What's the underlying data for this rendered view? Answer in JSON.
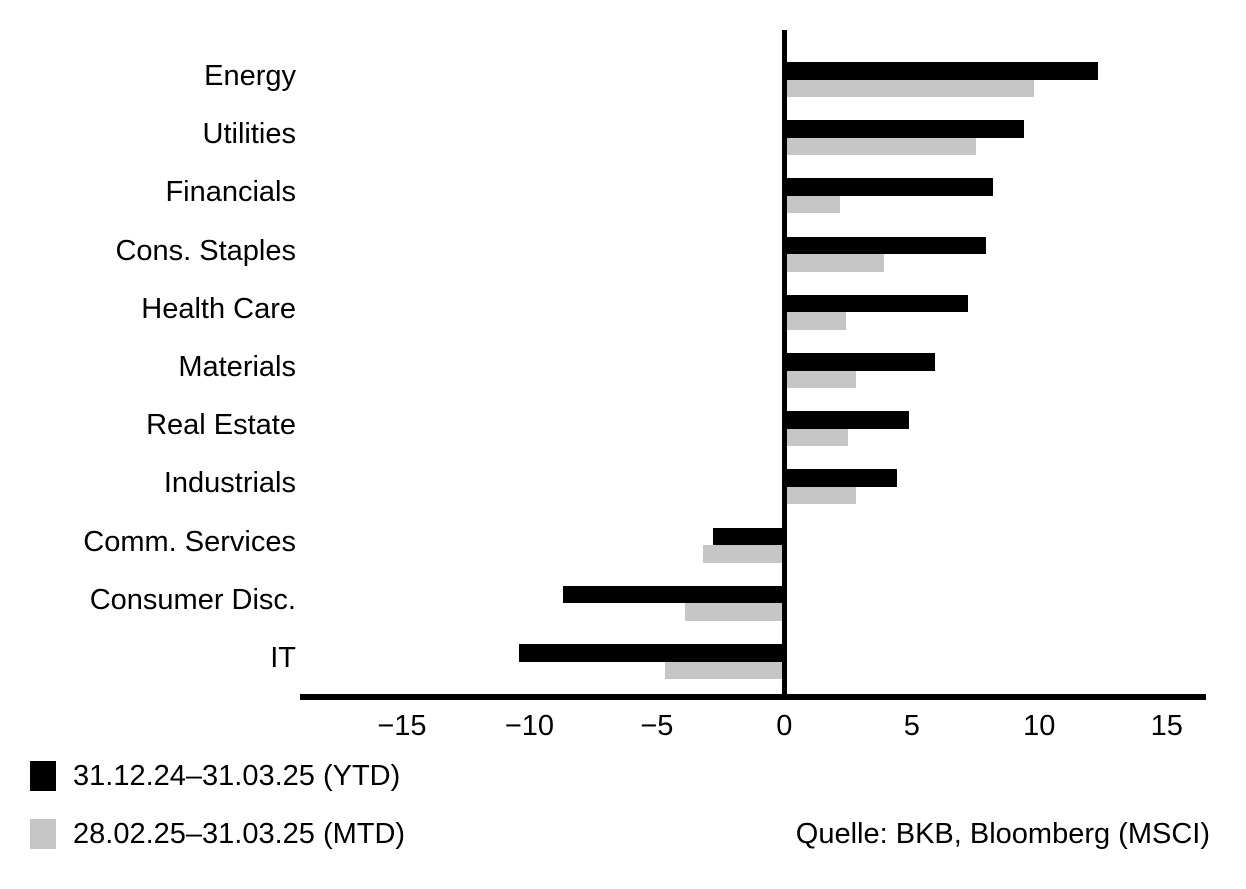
{
  "chart_data": {
    "type": "bar",
    "orientation": "horizontal",
    "title": "",
    "xlabel": "",
    "ylabel": "",
    "categories": [
      "Energy",
      "Utilities",
      "Financials",
      "Cons. Staples",
      "Health Care",
      "Materials",
      "Real Estate",
      "Industrials",
      "Comm. Services",
      "Consumer Disc.",
      "IT"
    ],
    "series": [
      {
        "name": "31.12.24–31.03.25 (YTD)",
        "color": "#000000",
        "values": [
          12.3,
          9.4,
          8.2,
          7.9,
          7.2,
          5.9,
          4.9,
          4.4,
          -2.8,
          -8.7,
          -10.4
        ]
      },
      {
        "name": "28.02.25–31.03.25 (MTD)",
        "color": "#c6c6c6",
        "values": [
          9.8,
          7.5,
          2.2,
          3.9,
          2.4,
          2.8,
          2.5,
          2.8,
          -3.2,
          -3.9,
          -4.7
        ]
      }
    ],
    "xlim": [
      -19,
      16.5
    ],
    "xticks": [
      -15,
      -10,
      -5,
      0,
      5,
      10,
      15
    ],
    "xtick_labels": [
      "−15",
      "−10",
      "−5",
      "0",
      "5",
      "10",
      "15"
    ],
    "grid": false,
    "legend_position": "bottom-left"
  },
  "source_note": "Quelle: BKB, Bloomberg (MSCI)"
}
